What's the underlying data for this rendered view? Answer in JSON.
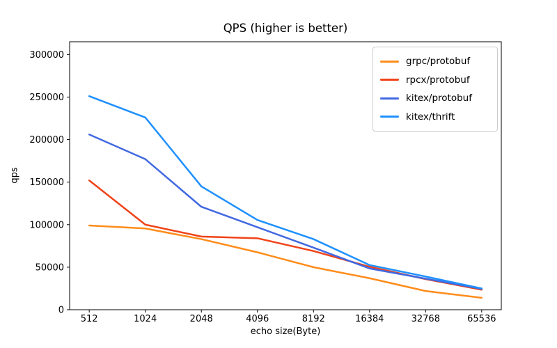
{
  "chart_data": {
    "type": "line",
    "title": "QPS (higher is better)",
    "xlabel": "echo size(Byte)",
    "ylabel": "qps",
    "categories": [
      "512",
      "1024",
      "2048",
      "4096",
      "8192",
      "16384",
      "32768",
      "65536"
    ],
    "series": [
      {
        "name": "grpc/protobuf",
        "color": "#ff8c1a",
        "values": [
          99000,
          95500,
          83000,
          67500,
          50000,
          37000,
          22000,
          14000
        ]
      },
      {
        "name": "rpcx/protobuf",
        "color": "#f04318",
        "values": [
          152000,
          100000,
          86000,
          84000,
          69000,
          50500,
          36000,
          23500
        ]
      },
      {
        "name": "kitex/protobuf",
        "color": "#4169e1",
        "values": [
          206000,
          177000,
          121000,
          97000,
          73000,
          48500,
          36500,
          24500
        ]
      },
      {
        "name": "kitex/thrift",
        "color": "#1e90ff",
        "values": [
          251000,
          226000,
          145000,
          105500,
          83000,
          52500,
          39000,
          25000
        ]
      }
    ],
    "yticks": [
      0,
      50000,
      100000,
      150000,
      200000,
      250000,
      300000
    ],
    "ylim": [
      0,
      315000
    ],
    "xlim": [
      -0.35,
      7.35
    ],
    "grid": false,
    "legend_position": "upper right",
    "axis_color": "#000000",
    "line_width": 2.5
  }
}
